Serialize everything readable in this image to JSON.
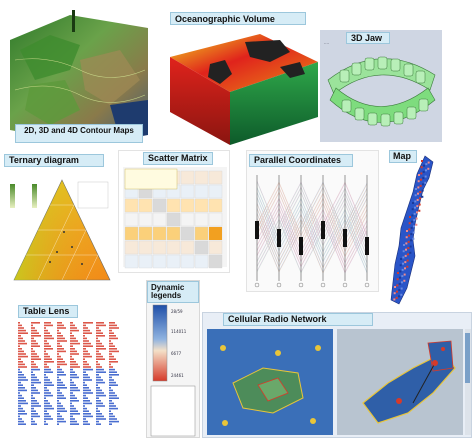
{
  "labels": {
    "contour": "2D, 3D and 4D Contour Maps",
    "ocean": "Oceanographic Volume",
    "jaw": "3D Jaw",
    "ternary": "Ternary diagram",
    "scatter": "Scatter Matrix",
    "parallel": "Parallel Coordinates",
    "map": "Map",
    "tablelens": "Table Lens",
    "legends": "Dynamic legends",
    "radio": "Cellular Radio Network"
  },
  "legend_values": [
    "28/59",
    "114011",
    "6677",
    "24461"
  ],
  "colors": {
    "label_bg": "#d6ecf6",
    "label_border": "#9cc7dc",
    "ocean_red": "#e0231c",
    "ocean_yellow": "#f2d81f",
    "ocean_green": "#2fa84a",
    "jaw_green": "#7edc7e",
    "map_blue": "#2a55c8",
    "radio_blue": "#3a6fb8",
    "radio_yellow": "#e8c53a"
  }
}
